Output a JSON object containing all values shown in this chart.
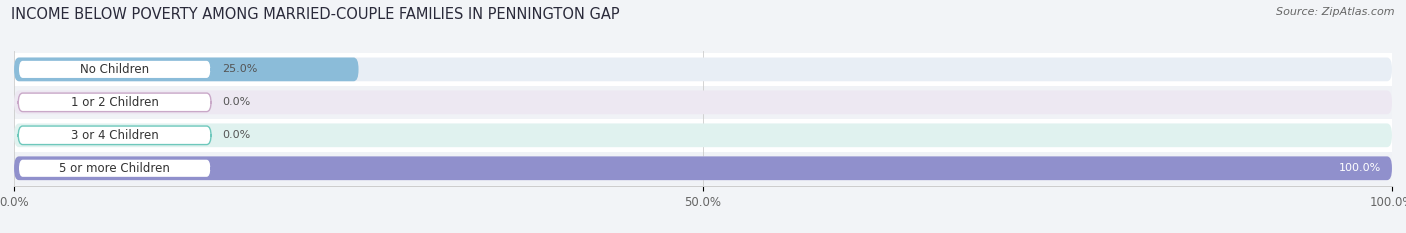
{
  "title": "INCOME BELOW POVERTY AMONG MARRIED-COUPLE FAMILIES IN PENNINGTON GAP",
  "source": "Source: ZipAtlas.com",
  "categories": [
    "No Children",
    "1 or 2 Children",
    "3 or 4 Children",
    "5 or more Children"
  ],
  "values": [
    25.0,
    0.0,
    0.0,
    100.0
  ],
  "bar_colors": [
    "#8bbcd9",
    "#c9a8c8",
    "#6ec8bc",
    "#9090cc"
  ],
  "bar_bg_colors": [
    "#e8eef5",
    "#ede8f2",
    "#e0f2ef",
    "#eae8f5"
  ],
  "row_bg_colors": [
    "#f5f7fa",
    "#f5f7fa",
    "#f5f7fa",
    "#f5f7fa"
  ],
  "xlim": [
    0,
    100
  ],
  "xticks": [
    0.0,
    50.0,
    100.0
  ],
  "xticklabels": [
    "0.0%",
    "50.0%",
    "100.0%"
  ],
  "figure_bg": "#f2f4f7",
  "bar_height": 0.72,
  "title_fontsize": 10.5,
  "tick_fontsize": 8.5,
  "label_fontsize": 8.5,
  "value_fontsize": 8.0
}
